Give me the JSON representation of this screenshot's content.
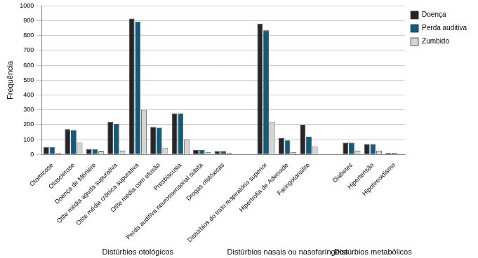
{
  "chart_data": {
    "type": "bar",
    "y_label": "Frequência",
    "categories": [
      "Otomicose",
      "Otosclerose",
      "Doença de Ménière",
      "Otite média aguda supurativa",
      "Otite média crônica supurativa",
      "Otite média com efusão",
      "Presbiacusia",
      "Perda auditiva neurossensorial súbita",
      "Drogas ototóxicas",
      null,
      "Distúrbios do trato respiratório superior",
      "Hipertrofia de Adenoide",
      "Faringotonsilite",
      null,
      "Diabetes",
      "Hipertensão",
      "Hipotireoidismo"
    ],
    "group_labels": [
      "Distúrbios otológicos",
      "Distúrbios nasais ou nasofaríngeos",
      "Distúrbios metabólicos"
    ],
    "series": [
      {
        "name": "Doença",
        "color": "#262626",
        "values": [
          50,
          170,
          35,
          220,
          915,
          185,
          275,
          30,
          20,
          null,
          880,
          110,
          200,
          null,
          80,
          70,
          10
        ]
      },
      {
        "name": "Perda auditiva",
        "color": "#0e5d7e",
        "values": [
          50,
          165,
          35,
          205,
          895,
          180,
          275,
          30,
          20,
          null,
          835,
          95,
          120,
          null,
          80,
          70,
          10
        ]
      },
      {
        "name": "Zumbido",
        "color": "#d4d4d4",
        "values": [
          10,
          80,
          20,
          25,
          300,
          45,
          100,
          15,
          10,
          null,
          220,
          15,
          55,
          null,
          25,
          25,
          5
        ]
      }
    ],
    "ylim": [
      0,
      1000
    ],
    "yticks": [
      0,
      100,
      200,
      300,
      400,
      500,
      600,
      700,
      800,
      900,
      1000
    ],
    "grid": "y",
    "legend": "top-right"
  }
}
